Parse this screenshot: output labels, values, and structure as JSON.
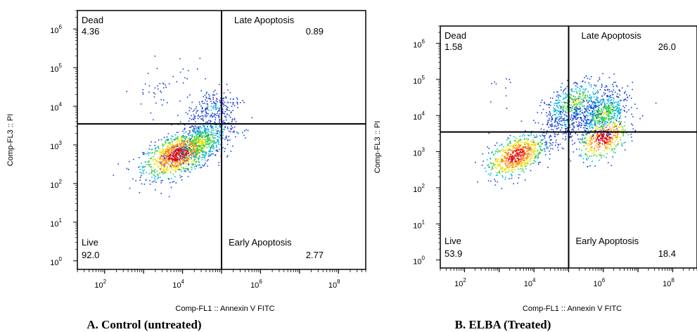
{
  "chart_data": [
    {
      "type": "scatter",
      "caption": "A. Control (untreated)",
      "caption_letter": "A",
      "caption_rest": ". Control (untreated)",
      "xlabel": "Comp-FL1 :: Annexin V FITC",
      "ylabel": "Comp-FL3 :: PI",
      "x_scale": "log",
      "y_scale": "log",
      "xlim": [
        20,
        500000000
      ],
      "ylim": [
        0.6,
        3000000
      ],
      "x_ticks": [
        {
          "base": "10",
          "exp": "2"
        },
        {
          "base": "10",
          "exp": "4"
        },
        {
          "base": "10",
          "exp": "6"
        },
        {
          "base": "10",
          "exp": "8"
        }
      ],
      "y_ticks": [
        {
          "base": "10",
          "exp": "0"
        },
        {
          "base": "10",
          "exp": "1"
        },
        {
          "base": "10",
          "exp": "2"
        },
        {
          "base": "10",
          "exp": "3"
        },
        {
          "base": "10",
          "exp": "4"
        },
        {
          "base": "10",
          "exp": "5"
        },
        {
          "base": "10",
          "exp": "6"
        }
      ],
      "gate": {
        "x": 100000,
        "y": 3500
      },
      "quadrants": [
        {
          "name": "Dead",
          "percent": "4.36"
        },
        {
          "name": "Late Apoptosis",
          "percent": "0.89"
        },
        {
          "name": "Live",
          "percent": "92.0"
        },
        {
          "name": "Early Apoptosis",
          "percent": "2.77"
        }
      ],
      "populations": [
        {
          "x": 8000,
          "y": 600,
          "sx": 0.45,
          "sy": 0.28,
          "n": 1100,
          "density": "high"
        },
        {
          "x": 30000,
          "y": 1200,
          "sx": 0.4,
          "sy": 0.3,
          "n": 500,
          "density": "medium"
        },
        {
          "x": 60000,
          "y": 9000,
          "sx": 0.35,
          "sy": 0.3,
          "n": 250,
          "density": "low"
        },
        {
          "x": 3000,
          "y": 40000,
          "sx": 0.4,
          "sy": 0.35,
          "n": 45,
          "density": "sparse"
        }
      ]
    },
    {
      "type": "scatter",
      "caption": "B. ELBA (Treated)",
      "caption_letter": "B",
      "caption_rest": ". ELBA (Treated)",
      "xlabel": "Comp-FL1 :: Annexin V FITC",
      "ylabel": "Comp-FL3 :: PI",
      "x_scale": "log",
      "y_scale": "log",
      "xlim": [
        20,
        500000000
      ],
      "ylim": [
        0.6,
        3000000
      ],
      "x_ticks": [
        {
          "base": "10",
          "exp": "2"
        },
        {
          "base": "10",
          "exp": "4"
        },
        {
          "base": "10",
          "exp": "6"
        },
        {
          "base": "10",
          "exp": "8"
        }
      ],
      "y_ticks": [
        {
          "base": "10",
          "exp": "0"
        },
        {
          "base": "10",
          "exp": "1"
        },
        {
          "base": "10",
          "exp": "2"
        },
        {
          "base": "10",
          "exp": "3"
        },
        {
          "base": "10",
          "exp": "4"
        },
        {
          "base": "10",
          "exp": "5"
        },
        {
          "base": "10",
          "exp": "6"
        }
      ],
      "gate": {
        "x": 100000,
        "y": 3500
      },
      "quadrants": [
        {
          "name": "Dead",
          "percent": "1.58"
        },
        {
          "name": "Late Apoptosis",
          "percent": "26.0"
        },
        {
          "name": "Live",
          "percent": "53.9"
        },
        {
          "name": "Early Apoptosis",
          "percent": "18.4"
        }
      ],
      "populations": [
        {
          "x": 3000,
          "y": 800,
          "sx": 0.4,
          "sy": 0.28,
          "n": 700,
          "density": "high"
        },
        {
          "x": 1000000,
          "y": 2500,
          "sx": 0.35,
          "sy": 0.3,
          "n": 450,
          "density": "high"
        },
        {
          "x": 1000000,
          "y": 12000,
          "sx": 0.35,
          "sy": 0.3,
          "n": 500,
          "density": "medium"
        },
        {
          "x": 150000,
          "y": 25000,
          "sx": 0.45,
          "sy": 0.3,
          "n": 400,
          "density": "medium"
        },
        {
          "x": 80000,
          "y": 6000,
          "sx": 0.5,
          "sy": 0.3,
          "n": 300,
          "density": "low"
        },
        {
          "x": 2000,
          "y": 70000,
          "sx": 0.3,
          "sy": 0.2,
          "n": 10,
          "density": "sparse"
        }
      ]
    }
  ]
}
